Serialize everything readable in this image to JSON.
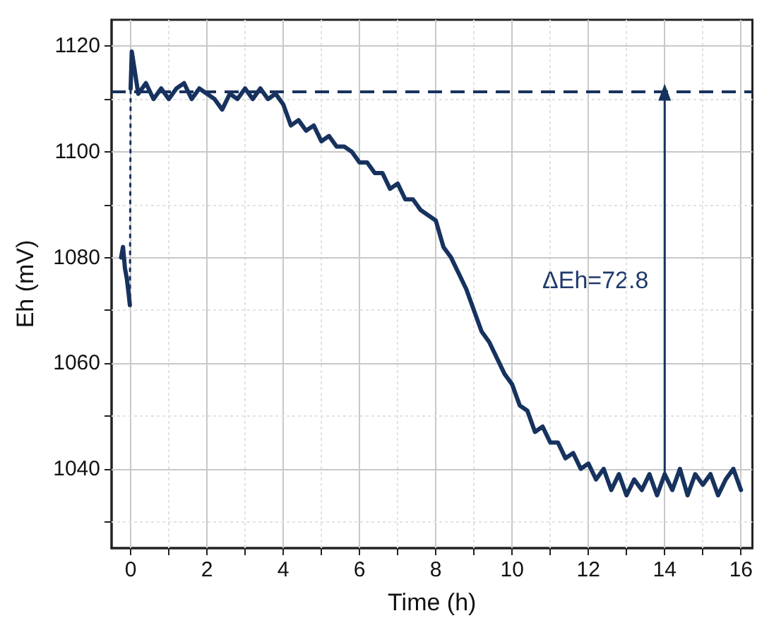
{
  "chart_data": {
    "type": "line",
    "xlabel": "Time (h)",
    "ylabel": "Eh (mV)",
    "xlim": [
      -0.5,
      16.3
    ],
    "ylim": [
      1025,
      1125
    ],
    "xticks": [
      0,
      {
        "value": 1,
        "label": null
      },
      2,
      {
        "value": 3,
        "label": null
      },
      4,
      {
        "value": 5,
        "label": null
      },
      6,
      {
        "value": 7,
        "label": null
      },
      8,
      {
        "value": 9,
        "label": null
      },
      10,
      {
        "value": 11,
        "label": null
      },
      12,
      {
        "value": 13,
        "label": null
      },
      14,
      {
        "value": 15,
        "label": null
      },
      16
    ],
    "yticks": [
      {
        "value": 1030,
        "label": null
      },
      1040,
      {
        "value": 1050,
        "label": null
      },
      1060,
      {
        "value": 1070,
        "label": null
      },
      1080,
      {
        "value": 1090,
        "label": null
      },
      1100,
      {
        "value": 1110,
        "label": null
      },
      1120
    ],
    "grid": true,
    "marker": "none",
    "series": [
      {
        "color": "#17325e",
        "line_style": "solid",
        "x": [
          -0.25,
          -0.2,
          -0.15,
          -0.1,
          -0.05,
          -0.02
        ],
        "values": [
          1080,
          1082,
          1078,
          1076,
          1073,
          1071
        ]
      },
      {
        "color": "#17325e",
        "line_style": "dotted",
        "x": [
          -0.02,
          0
        ],
        "values": [
          1071,
          1112
        ]
      },
      {
        "color": "#17325e",
        "line_style": "solid",
        "x": [
          0,
          0.03,
          0.2,
          0.4,
          0.6,
          0.8,
          1.0,
          1.2,
          1.4,
          1.6,
          1.8,
          2.0,
          2.2,
          2.4,
          2.6,
          2.8,
          3.0,
          3.2,
          3.4,
          3.6,
          3.8,
          4.0,
          4.2,
          4.4,
          4.6,
          4.8,
          5.0,
          5.2,
          5.4,
          5.6,
          5.8,
          6.0,
          6.2,
          6.4,
          6.6,
          6.8,
          7.0,
          7.2,
          7.4,
          7.6,
          7.8,
          8.0,
          8.2,
          8.4,
          8.6,
          8.8,
          9.0,
          9.2,
          9.4,
          9.6,
          9.8,
          10.0,
          10.2,
          10.4,
          10.6,
          10.8,
          11.0,
          11.2,
          11.4,
          11.6,
          11.8,
          12.0,
          12.2,
          12.4,
          12.6,
          12.8,
          13.0,
          13.2,
          13.4,
          13.6,
          13.8,
          14.0,
          14.2,
          14.4,
          14.6,
          14.8,
          15.0,
          15.2,
          15.4,
          15.6,
          15.8,
          16.0
        ],
        "values": [
          1112,
          1119,
          1111,
          1113,
          1110,
          1112,
          1110,
          1112,
          1113,
          1110,
          1112,
          1111,
          1110,
          1108,
          1111,
          1110,
          1112,
          1110,
          1112,
          1110,
          1111,
          1109,
          1105,
          1106,
          1104,
          1105,
          1102,
          1103,
          1101,
          1101,
          1100,
          1098,
          1098,
          1096,
          1096,
          1093,
          1094,
          1091,
          1091,
          1089,
          1088,
          1087,
          1082,
          1080,
          1077,
          1074,
          1070,
          1066,
          1064,
          1061,
          1058,
          1056,
          1052,
          1051,
          1047,
          1048,
          1045,
          1045,
          1042,
          1043,
          1040,
          1041,
          1038,
          1040,
          1036,
          1039,
          1035,
          1038,
          1036,
          1039,
          1035,
          1039,
          1036,
          1040,
          1035,
          1039,
          1037,
          1039,
          1035,
          1038,
          1040,
          1036
        ]
      },
      {
        "color": "#17325e",
        "line_style": "solid",
        "marker": "triangle",
        "x": [
          14,
          14
        ],
        "values": [
          1038.5,
          1111.3
        ]
      }
    ],
    "ref_lines": [
      {
        "axis": "y",
        "value": 1111.3,
        "color": "#17325e",
        "line_style": "dashed"
      }
    ],
    "annotations": [
      "ΔEh=72.8"
    ]
  }
}
